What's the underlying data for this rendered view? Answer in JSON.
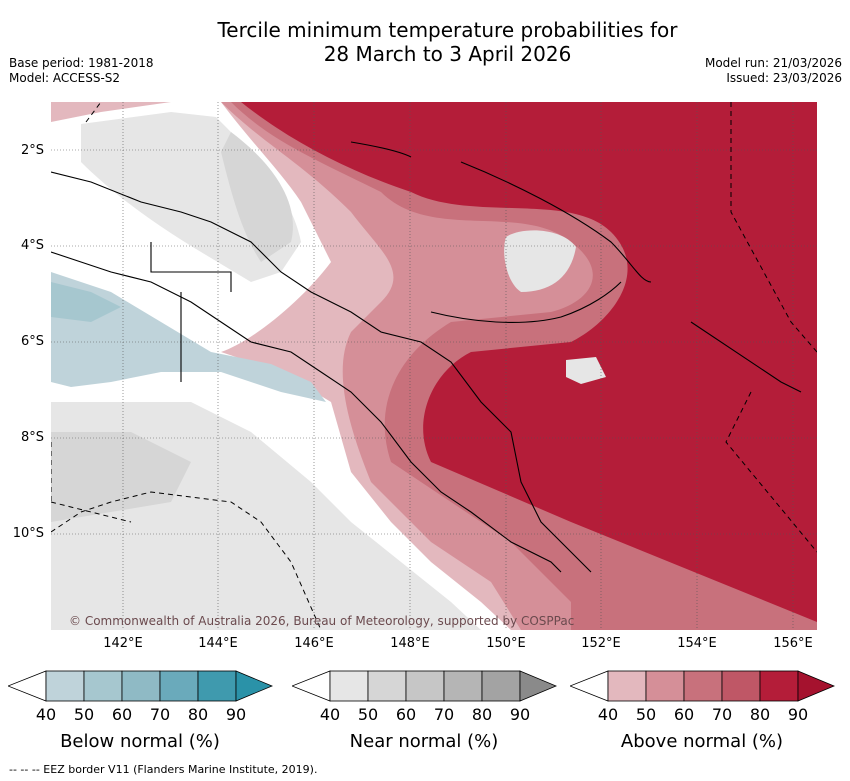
{
  "title": {
    "line1": "Tercile minimum temperature probabilities for",
    "line2": "28 March to 3 April 2026"
  },
  "meta": {
    "base_period": "Base period: 1981-2018",
    "model": "Model: ACCESS-S2",
    "model_run": "Model run: 21/03/2026",
    "issued": "Issued: 23/03/2026"
  },
  "map": {
    "copyright": "© Commonwealth of Australia 2026, Bureau of Meteorology, supported by COSPPac",
    "lat_labels": [
      "2°S",
      "4°S",
      "6°S",
      "8°S",
      "10°S"
    ],
    "lon_labels": [
      "142°E",
      "144°E",
      "146°E",
      "148°E",
      "150°E",
      "152°E",
      "154°E",
      "156°E"
    ]
  },
  "legends": [
    {
      "label": "Below normal (%)",
      "ticks": [
        "40",
        "50",
        "60",
        "70",
        "80",
        "90"
      ],
      "colors": [
        "#bfd3da",
        "#a6c7cf",
        "#8fbac5",
        "#6aaabb",
        "#3f9aae",
        "#2a92a8"
      ]
    },
    {
      "label": "Near normal (%)",
      "ticks": [
        "40",
        "50",
        "60",
        "70",
        "80",
        "90"
      ],
      "colors": [
        "#e6e6e6",
        "#d6d6d6",
        "#c6c6c6",
        "#b5b5b5",
        "#a3a3a3",
        "#8a8a8a"
      ]
    },
    {
      "label": "Above normal (%)",
      "ticks": [
        "40",
        "50",
        "60",
        "70",
        "80",
        "90"
      ],
      "colors": [
        "#e3b8be",
        "#d58f98",
        "#c8717c",
        "#bf5766",
        "#b41d39",
        "#a5122e"
      ]
    }
  ],
  "footer": "--  --  -- EEZ border V11 (Flanders Marine Institute, 2019)."
}
